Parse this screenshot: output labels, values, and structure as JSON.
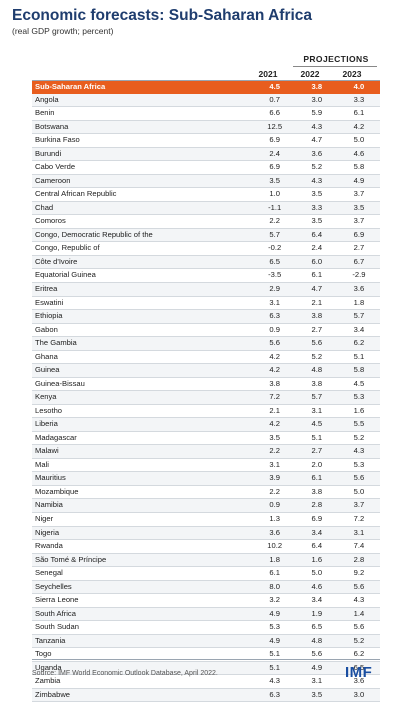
{
  "header": {
    "title": "Economic forecasts: Sub-Saharan Africa",
    "subtitle": "(real GDP growth; percent)",
    "projections_label": "PROJECTIONS"
  },
  "chart_data": {
    "type": "table",
    "columns": [
      "2021",
      "2022",
      "2023"
    ],
    "rows": [
      {
        "name": "Sub-Saharan Africa",
        "values": [
          "4.5",
          "3.8",
          "4.0"
        ],
        "highlight": true
      },
      {
        "name": "Angola",
        "values": [
          "0.7",
          "3.0",
          "3.3"
        ]
      },
      {
        "name": "Benin",
        "values": [
          "6.6",
          "5.9",
          "6.1"
        ]
      },
      {
        "name": "Botswana",
        "values": [
          "12.5",
          "4.3",
          "4.2"
        ]
      },
      {
        "name": "Burkina Faso",
        "values": [
          "6.9",
          "4.7",
          "5.0"
        ]
      },
      {
        "name": "Burundi",
        "values": [
          "2.4",
          "3.6",
          "4.6"
        ]
      },
      {
        "name": "Cabo Verde",
        "values": [
          "6.9",
          "5.2",
          "5.8"
        ]
      },
      {
        "name": "Cameroon",
        "values": [
          "3.5",
          "4.3",
          "4.9"
        ]
      },
      {
        "name": "Central African Republic",
        "values": [
          "1.0",
          "3.5",
          "3.7"
        ]
      },
      {
        "name": "Chad",
        "values": [
          "-1.1",
          "3.3",
          "3.5"
        ]
      },
      {
        "name": "Comoros",
        "values": [
          "2.2",
          "3.5",
          "3.7"
        ]
      },
      {
        "name": "Congo, Democratic Republic of the",
        "values": [
          "5.7",
          "6.4",
          "6.9"
        ]
      },
      {
        "name": "Congo, Republic of",
        "values": [
          "-0.2",
          "2.4",
          "2.7"
        ]
      },
      {
        "name": "Côte d'Ivoire",
        "values": [
          "6.5",
          "6.0",
          "6.7"
        ]
      },
      {
        "name": "Equatorial Guinea",
        "values": [
          "-3.5",
          "6.1",
          "-2.9"
        ]
      },
      {
        "name": "Eritrea",
        "values": [
          "2.9",
          "4.7",
          "3.6"
        ]
      },
      {
        "name": "Eswatini",
        "values": [
          "3.1",
          "2.1",
          "1.8"
        ]
      },
      {
        "name": "Ethiopia",
        "values": [
          "6.3",
          "3.8",
          "5.7"
        ]
      },
      {
        "name": "Gabon",
        "values": [
          "0.9",
          "2.7",
          "3.4"
        ]
      },
      {
        "name": "The Gambia",
        "values": [
          "5.6",
          "5.6",
          "6.2"
        ]
      },
      {
        "name": "Ghana",
        "values": [
          "4.2",
          "5.2",
          "5.1"
        ]
      },
      {
        "name": "Guinea",
        "values": [
          "4.2",
          "4.8",
          "5.8"
        ]
      },
      {
        "name": "Guinea-Bissau",
        "values": [
          "3.8",
          "3.8",
          "4.5"
        ]
      },
      {
        "name": "Kenya",
        "values": [
          "7.2",
          "5.7",
          "5.3"
        ]
      },
      {
        "name": "Lesotho",
        "values": [
          "2.1",
          "3.1",
          "1.6"
        ]
      },
      {
        "name": "Liberia",
        "values": [
          "4.2",
          "4.5",
          "5.5"
        ]
      },
      {
        "name": "Madagascar",
        "values": [
          "3.5",
          "5.1",
          "5.2"
        ]
      },
      {
        "name": "Malawi",
        "values": [
          "2.2",
          "2.7",
          "4.3"
        ]
      },
      {
        "name": "Mali",
        "values": [
          "3.1",
          "2.0",
          "5.3"
        ]
      },
      {
        "name": "Mauritius",
        "values": [
          "3.9",
          "6.1",
          "5.6"
        ]
      },
      {
        "name": "Mozambique",
        "values": [
          "2.2",
          "3.8",
          "5.0"
        ]
      },
      {
        "name": "Namibia",
        "values": [
          "0.9",
          "2.8",
          "3.7"
        ]
      },
      {
        "name": "Niger",
        "values": [
          "1.3",
          "6.9",
          "7.2"
        ]
      },
      {
        "name": "Nigeria",
        "values": [
          "3.6",
          "3.4",
          "3.1"
        ]
      },
      {
        "name": "Rwanda",
        "values": [
          "10.2",
          "6.4",
          "7.4"
        ]
      },
      {
        "name": "São Tomé & Príncipe",
        "values": [
          "1.8",
          "1.6",
          "2.8"
        ]
      },
      {
        "name": "Senegal",
        "values": [
          "6.1",
          "5.0",
          "9.2"
        ]
      },
      {
        "name": "Seychelles",
        "values": [
          "8.0",
          "4.6",
          "5.6"
        ]
      },
      {
        "name": "Sierra Leone",
        "values": [
          "3.2",
          "3.4",
          "4.3"
        ]
      },
      {
        "name": "South Africa",
        "values": [
          "4.9",
          "1.9",
          "1.4"
        ]
      },
      {
        "name": "South Sudan",
        "values": [
          "5.3",
          "6.5",
          "5.6"
        ]
      },
      {
        "name": "Tanzania",
        "values": [
          "4.9",
          "4.8",
          "5.2"
        ]
      },
      {
        "name": "Togo",
        "values": [
          "5.1",
          "5.6",
          "6.2"
        ]
      },
      {
        "name": "Uganda",
        "values": [
          "5.1",
          "4.9",
          "6.5"
        ]
      },
      {
        "name": "Zambia",
        "values": [
          "4.3",
          "3.1",
          "3.6"
        ]
      },
      {
        "name": "Zimbabwe",
        "values": [
          "6.3",
          "3.5",
          "3.0"
        ]
      }
    ]
  },
  "footer": {
    "source": "Source: IMF World Economic Outlook Database, April 2022.",
    "logo": "IMF"
  },
  "colors": {
    "title": "#1f3d6e",
    "highlight_row": "#e85d1e",
    "logo": "#1a4ea1"
  }
}
